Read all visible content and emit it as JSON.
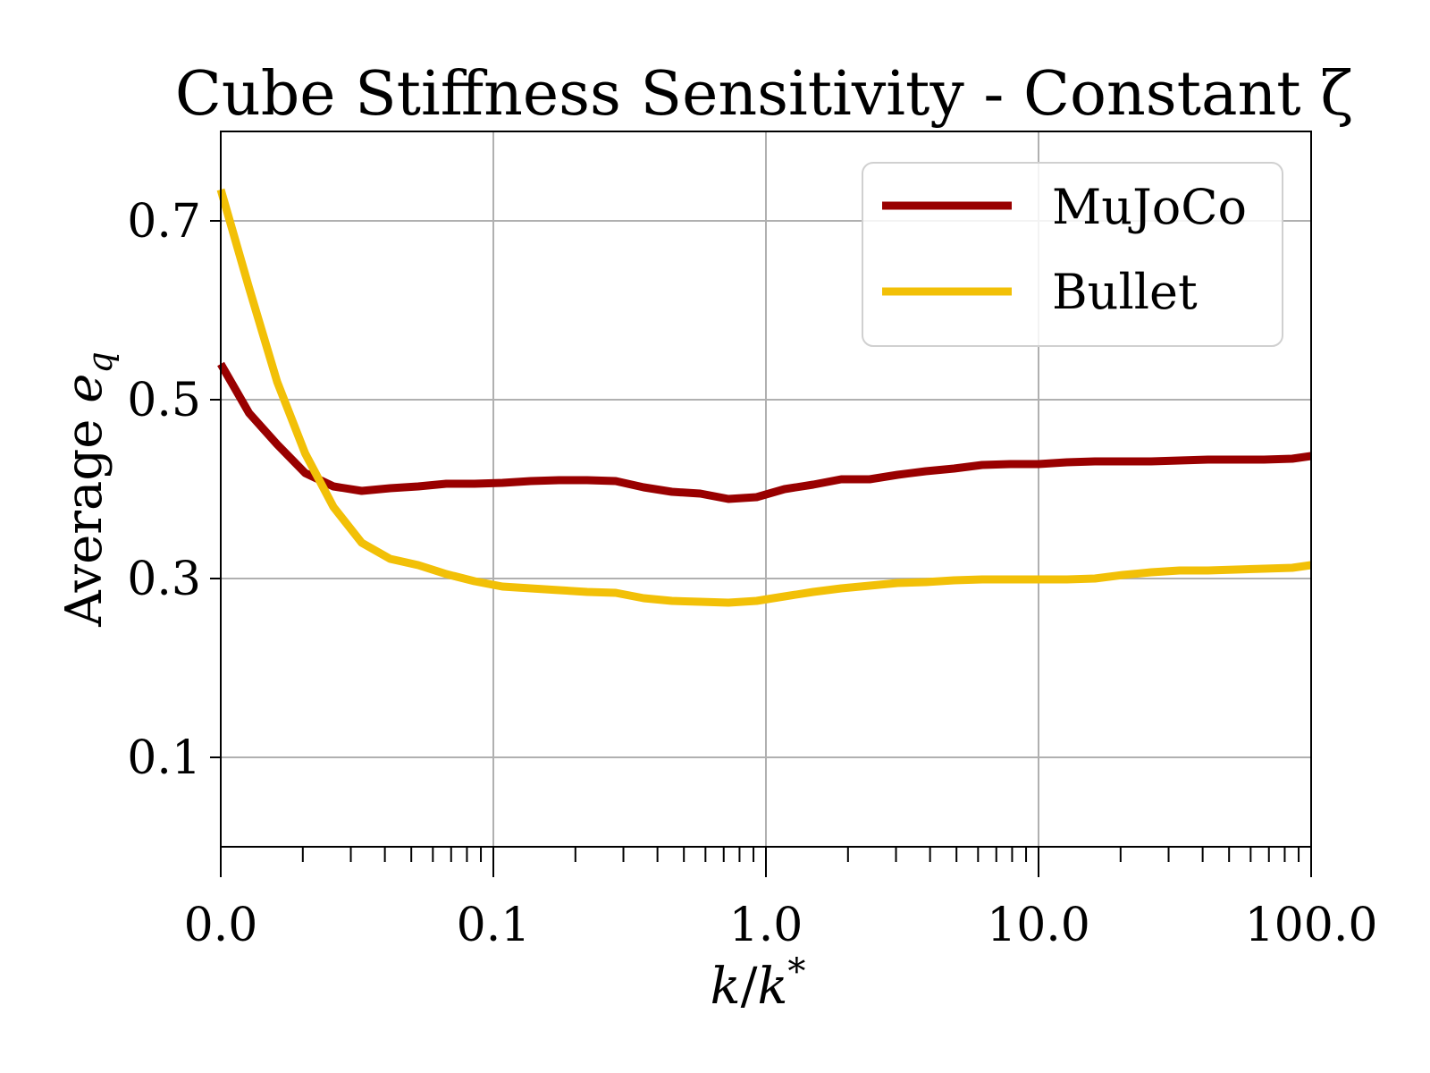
{
  "chart_data": {
    "type": "line",
    "title": "Cube Stiffness Sensitivity - Constant ζ",
    "xlabel": "k/k*",
    "ylabel": "Average e_q",
    "ylabel_main": "Average ",
    "ylabel_symbol": "e",
    "ylabel_sub": "q",
    "xlabel_k": "k",
    "xlabel_slash": "/",
    "xlabel_k2": "k",
    "xlabel_star": "*",
    "x_scale": "log",
    "xlim": [
      0.01,
      100
    ],
    "ylim": [
      0.0,
      0.8
    ],
    "grid": true,
    "legend_position": "upper right",
    "x_tick_values": [
      0.01,
      0.1,
      1,
      10,
      100
    ],
    "x_tick_labels": [
      "0.0",
      "0.1",
      "1.0",
      "10.0",
      "100.0"
    ],
    "y_tick_values": [
      0.1,
      0.3,
      0.5,
      0.7
    ],
    "y_tick_labels": [
      "0.1",
      "0.3",
      "0.5",
      "0.7"
    ],
    "series": [
      {
        "name": "MuJoCo",
        "color": "#990000",
        "x": [
          0.01,
          0.0127,
          0.0161,
          0.0204,
          0.0259,
          0.0329,
          0.0418,
          0.053,
          0.0672,
          0.0853,
          0.108,
          0.137,
          0.174,
          0.221,
          0.281,
          0.356,
          0.452,
          0.574,
          0.728,
          0.924,
          1.17,
          1.49,
          1.89,
          2.4,
          3.04,
          3.86,
          4.9,
          6.21,
          7.88,
          10.0,
          12.7,
          16.1,
          20.4,
          25.9,
          32.9,
          41.8,
          53.0,
          67.2,
          85.3,
          100
        ],
        "values": [
          0.54,
          0.485,
          0.45,
          0.418,
          0.403,
          0.398,
          0.401,
          0.403,
          0.406,
          0.406,
          0.407,
          0.409,
          0.41,
          0.41,
          0.409,
          0.402,
          0.397,
          0.395,
          0.389,
          0.391,
          0.4,
          0.405,
          0.411,
          0.411,
          0.416,
          0.42,
          0.423,
          0.427,
          0.428,
          0.428,
          0.43,
          0.431,
          0.431,
          0.431,
          0.432,
          0.433,
          0.433,
          0.433,
          0.434,
          0.437
        ]
      },
      {
        "name": "Bullet",
        "color": "#F2C007",
        "x": [
          0.01,
          0.0127,
          0.0161,
          0.0204,
          0.0259,
          0.0329,
          0.0418,
          0.053,
          0.0672,
          0.0853,
          0.108,
          0.137,
          0.174,
          0.221,
          0.281,
          0.356,
          0.452,
          0.574,
          0.728,
          0.924,
          1.17,
          1.49,
          1.89,
          2.4,
          3.04,
          3.86,
          4.9,
          6.21,
          7.88,
          10.0,
          12.7,
          16.1,
          20.4,
          25.9,
          32.9,
          41.8,
          53.0,
          67.2,
          85.3,
          100
        ],
        "values": [
          0.735,
          0.625,
          0.52,
          0.44,
          0.38,
          0.34,
          0.322,
          0.315,
          0.305,
          0.297,
          0.291,
          0.289,
          0.287,
          0.285,
          0.284,
          0.278,
          0.275,
          0.274,
          0.273,
          0.275,
          0.28,
          0.285,
          0.289,
          0.292,
          0.295,
          0.296,
          0.298,
          0.299,
          0.299,
          0.299,
          0.299,
          0.3,
          0.304,
          0.307,
          0.309,
          0.309,
          0.31,
          0.311,
          0.312,
          0.315
        ]
      }
    ]
  }
}
